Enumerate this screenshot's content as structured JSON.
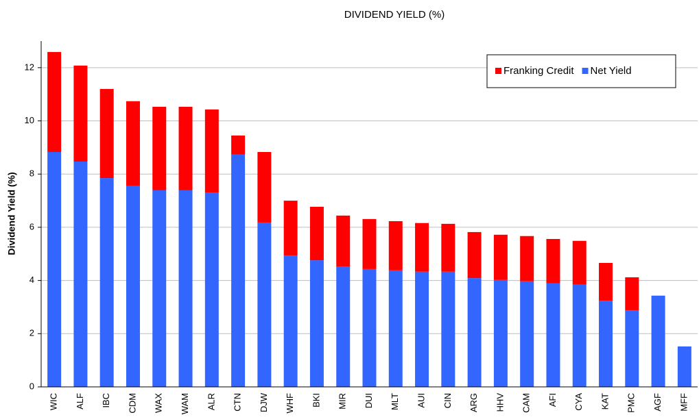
{
  "chart_data": {
    "type": "stacked_bar",
    "title": "DIVIDEND YIELD (%)",
    "y_label": "Dividend Yield (%)",
    "categories": [
      "WIC",
      "ALF",
      "IBC",
      "CDM",
      "WAX",
      "WAM",
      "ALR",
      "CTN",
      "DJW",
      "WHF",
      "BKI",
      "MIR",
      "DUI",
      "MLT",
      "AUI",
      "CIN",
      "ARG",
      "HHV",
      "CAM",
      "AFI",
      "CYA",
      "KAT",
      "PMC",
      "AGF",
      "MFF"
    ],
    "series": [
      {
        "name": "Franking Credit",
        "color": "#ff0000",
        "values": [
          3.76,
          3.61,
          3.35,
          3.19,
          3.14,
          3.14,
          3.12,
          0.72,
          2.65,
          2.06,
          2.01,
          1.91,
          1.88,
          1.85,
          1.83,
          1.8,
          1.73,
          1.7,
          1.7,
          1.67,
          1.65,
          1.42,
          1.24,
          0,
          0
        ]
      },
      {
        "name": "Net Yield",
        "color": "#3366ff",
        "values": [
          8.83,
          8.47,
          7.85,
          7.55,
          7.39,
          7.39,
          7.31,
          8.73,
          6.18,
          4.94,
          4.76,
          4.53,
          4.43,
          4.38,
          4.33,
          4.33,
          4.09,
          4.02,
          3.97,
          3.89,
          3.84,
          3.24,
          2.88,
          3.43,
          1.52
        ]
      }
    ],
    "ylim": [
      0,
      13
    ],
    "yticks": [
      0,
      2,
      4,
      6,
      8,
      10,
      12
    ],
    "grid": true,
    "legend": "top-right"
  }
}
